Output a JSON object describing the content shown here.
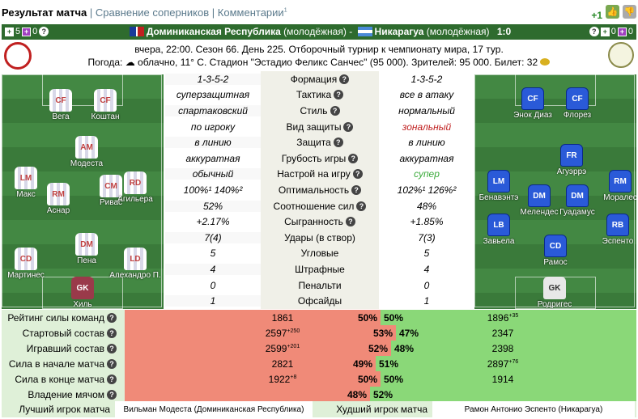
{
  "tabs": {
    "active": "Результат матча",
    "sep": "|",
    "compare": "Сравнение соперников",
    "comments": "Комментарии",
    "comments_sup": "1"
  },
  "rating": {
    "plus": "+1"
  },
  "score": {
    "left_plus": "5",
    "left_purple": "0",
    "team1": "Доминиканская Республика",
    "team1_suffix": "(молодёжная)",
    "dash": "-",
    "team2": "Никарагуа",
    "team2_suffix": "(молодёжная)",
    "result": "1:0",
    "right_plus": "0",
    "right_purple": "0"
  },
  "info": {
    "line1": "вчера, 22:00. Сезон 66. День 225. Отборочный турнир к чемпионату мира, 17 тур.",
    "weather_prefix": "Погода:",
    "weather": "облачно, 11° С. Стадион \"Эстадио Феликс Санчес\" (95 000). Зрителей: 95 000. Билет: 32"
  },
  "left_players": [
    {
      "pos": "CF",
      "name": "Вега"
    },
    {
      "pos": "CF",
      "name": "Коштан"
    },
    {
      "pos": "AM",
      "name": "Модеста"
    },
    {
      "pos": "LM",
      "name": "Макс"
    },
    {
      "pos": "CM",
      "name": "Ривас"
    },
    {
      "pos": "RM",
      "name": "Аснар"
    },
    {
      "pos": "DM",
      "name": "Пена"
    },
    {
      "pos": "CD",
      "name": "Мартинес"
    },
    {
      "pos": "LD",
      "name": "Алехандро П."
    },
    {
      "pos": "RD",
      "name": "Агильера"
    },
    {
      "pos": "GK",
      "name": "Хиль"
    }
  ],
  "right_players": [
    {
      "pos": "CF",
      "name": "Энок Диаз"
    },
    {
      "pos": "CF",
      "name": "Флорез"
    },
    {
      "pos": "FR",
      "name": "Агуэррэ"
    },
    {
      "pos": "LM",
      "name": "Бенавэнтэ"
    },
    {
      "pos": "DM",
      "name": "Мелендес"
    },
    {
      "pos": "DM",
      "name": "Гуадамус"
    },
    {
      "pos": "RM",
      "name": "Моралес"
    },
    {
      "pos": "LB",
      "name": "Завьела"
    },
    {
      "pos": "RB",
      "name": "Эспенто"
    },
    {
      "pos": "CD",
      "name": "Рамос"
    },
    {
      "pos": "GK",
      "name": "Родригес"
    }
  ],
  "stats": [
    {
      "l": "1-3-5-2",
      "c": "Формация",
      "r": "1-3-5-2"
    },
    {
      "l": "суперзащитная",
      "c": "Тактика",
      "r": "все в атаку"
    },
    {
      "l": "спартаковский",
      "c": "Стиль",
      "r": "нормальный"
    },
    {
      "l": "по игроку",
      "c": "Вид защиты",
      "r": "зональный"
    },
    {
      "l": "в линию",
      "c": "Защита",
      "r": "в линию"
    },
    {
      "l": "аккуратная",
      "c": "Грубость игры",
      "r": "аккуратная"
    },
    {
      "l": "обычный",
      "c": "Настрой на игру",
      "r": "супер"
    },
    {
      "l": "100%¹     140%²",
      "c": "Оптимальность",
      "r": "102%¹     126%²"
    },
    {
      "l": "52%",
      "c": "Соотношение сил",
      "r": "48%"
    },
    {
      "l": "+2.17%",
      "c": "Сыгранность",
      "r": "+1.85%"
    },
    {
      "l": "7(4)",
      "c": "Удары (в створ)",
      "r": "7(3)"
    },
    {
      "l": "5",
      "c": "Угловые",
      "r": "5"
    },
    {
      "l": "4",
      "c": "Штрафные",
      "r": "4"
    },
    {
      "l": "0",
      "c": "Пенальти",
      "r": "0"
    },
    {
      "l": "1",
      "c": "Офсайды",
      "r": "1"
    }
  ],
  "compare": [
    {
      "label": "Рейтинг силы команд",
      "lv": "1861",
      "lsup": "",
      "lp": "50%",
      "rp": "50%",
      "rv": "1896",
      "rsup": "+35",
      "lw": 0.5
    },
    {
      "label": "Стартовый состав",
      "lv": "2597",
      "lsup": "+250",
      "lp": "53%",
      "rp": "47%",
      "rv": "2347",
      "rsup": "",
      "lw": 0.53
    },
    {
      "label": "Игравший состав",
      "lv": "2599",
      "lsup": "+201",
      "lp": "52%",
      "rp": "48%",
      "rv": "2398",
      "rsup": "",
      "lw": 0.52
    },
    {
      "label": "Сила в начале матча",
      "lv": "2821",
      "lsup": "",
      "lp": "49%",
      "rp": "51%",
      "rv": "2897",
      "rsup": "+76",
      "lw": 0.49
    },
    {
      "label": "Сила в конце матча",
      "lv": "1922",
      "lsup": "+8",
      "lp": "50%",
      "rp": "50%",
      "rv": "1914",
      "rsup": "",
      "lw": 0.5
    },
    {
      "label": "Владение мячом",
      "lv": "",
      "lsup": "",
      "lp": "48%",
      "rp": "52%",
      "rv": "",
      "rsup": "",
      "lw": 0.48
    }
  ],
  "best": {
    "best_label": "Лучший игрок матча",
    "best_value": "Вильман Модеста (Доминиканская Республика)",
    "worst_label": "Худший игрок матча",
    "worst_value": "Рамон Антонио Эспенто (Никарагуа)"
  }
}
